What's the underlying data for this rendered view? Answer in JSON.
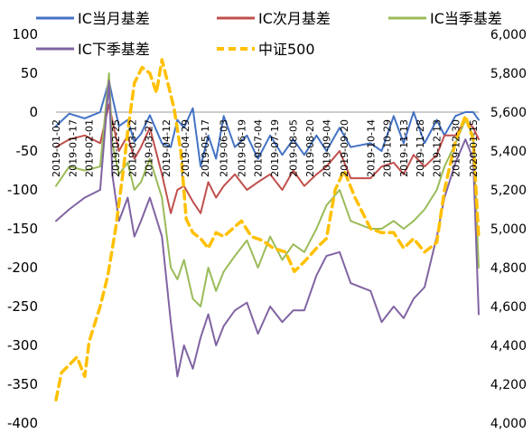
{
  "chart_data": {
    "type": "line",
    "title": "",
    "xlabel": "",
    "ylabel": "",
    "ylim": [
      -400,
      100
    ],
    "y2lim": [
      4000,
      6000
    ],
    "y_ticks": [
      "100",
      "50",
      "0",
      "-50",
      "-100",
      "-150",
      "-200",
      "-250",
      "-300",
      "-350",
      "-400"
    ],
    "y2_ticks": [
      "6,000",
      "5,800",
      "5,600",
      "5,400",
      "5,200",
      "5,000",
      "4,800",
      "4,600",
      "4,400",
      "4,200",
      "4,000"
    ],
    "x_tick_labels": [
      "2019-01-02",
      "2019-01-17",
      "2019-02-01",
      "2019-02-25",
      "2019-03-12",
      "2019-03-27",
      "2019-04-12",
      "2019-04-29",
      "2019-05-17",
      "2019-06-03",
      "2019-06-19",
      "2019-07-04",
      "2019-07-19",
      "2019-08-05",
      "2019-08-20",
      "2019-09-04",
      "2019-09-20",
      "2019-10-14",
      "2019-10-29",
      "2019-11-13",
      "2019-11-28",
      "2019-12-13",
      "2019-12-30",
      "2020-01-15"
    ],
    "x_range": [
      "2019-01-02",
      "2020-01-20"
    ],
    "grid": false,
    "legend_position": "top",
    "series": [
      {
        "name": "IC当月基差",
        "axis": "left",
        "color": "#4472C4",
        "dash": "solid",
        "x": [
          "2019-01-02",
          "2019-01-14",
          "2019-01-28",
          "2019-02-11",
          "2019-02-19",
          "2019-02-22",
          "2019-02-28",
          "2019-03-08",
          "2019-03-14",
          "2019-03-20",
          "2019-03-28",
          "2019-04-08",
          "2019-04-16",
          "2019-04-22",
          "2019-04-28",
          "2019-05-06",
          "2019-05-13",
          "2019-05-20",
          "2019-05-27",
          "2019-06-03",
          "2019-06-13",
          "2019-06-24",
          "2019-07-04",
          "2019-07-15",
          "2019-07-26",
          "2019-08-05",
          "2019-08-15",
          "2019-08-26",
          "2019-09-04",
          "2019-09-16",
          "2019-09-26",
          "2019-10-14",
          "2019-10-24",
          "2019-11-04",
          "2019-11-13",
          "2019-11-22",
          "2019-12-02",
          "2019-12-13",
          "2019-12-20",
          "2019-12-30",
          "2020-01-08",
          "2020-01-15",
          "2020-01-20"
        ],
        "values": [
          -18,
          -2,
          -8,
          0,
          40,
          20,
          -18,
          -10,
          -38,
          -28,
          -4,
          -40,
          -45,
          -10,
          -20,
          5,
          -70,
          -30,
          -60,
          -5,
          -45,
          -30,
          -60,
          -30,
          -55,
          -35,
          -55,
          -30,
          -50,
          -20,
          -45,
          -40,
          -50,
          -5,
          -40,
          0,
          -40,
          -10,
          -30,
          -5,
          0,
          0,
          -10
        ]
      },
      {
        "name": "IC次月基差",
        "axis": "left",
        "color": "#C0504D",
        "dash": "solid",
        "x": [
          "2019-01-02",
          "2019-01-14",
          "2019-01-28",
          "2019-02-11",
          "2019-02-19",
          "2019-02-22",
          "2019-02-28",
          "2019-03-08",
          "2019-03-14",
          "2019-03-20",
          "2019-03-28",
          "2019-04-08",
          "2019-04-16",
          "2019-04-22",
          "2019-04-28",
          "2019-05-06",
          "2019-05-13",
          "2019-05-20",
          "2019-05-27",
          "2019-06-03",
          "2019-06-13",
          "2019-06-24",
          "2019-07-04",
          "2019-07-15",
          "2019-07-26",
          "2019-08-05",
          "2019-08-15",
          "2019-08-26",
          "2019-09-04",
          "2019-09-16",
          "2019-09-26",
          "2019-10-14",
          "2019-10-24",
          "2019-11-04",
          "2019-11-13",
          "2019-11-22",
          "2019-12-02",
          "2019-12-13",
          "2019-12-20",
          "2019-12-30",
          "2020-01-08",
          "2020-01-15",
          "2020-01-20"
        ],
        "values": [
          -45,
          -35,
          -30,
          -40,
          10,
          -10,
          -50,
          -30,
          -60,
          -45,
          -20,
          -80,
          -130,
          -100,
          -95,
          -115,
          -130,
          -90,
          -110,
          -95,
          -80,
          -100,
          -90,
          -80,
          -100,
          -75,
          -95,
          -80,
          -70,
          -50,
          -85,
          -85,
          -70,
          -65,
          -80,
          -55,
          -70,
          -55,
          -30,
          -30,
          -10,
          -20,
          -35
        ]
      },
      {
        "name": "IC当季基差",
        "axis": "left",
        "color": "#9BBB59",
        "dash": "solid",
        "x": [
          "2019-01-02",
          "2019-01-14",
          "2019-01-28",
          "2019-02-11",
          "2019-02-19",
          "2019-02-22",
          "2019-02-28",
          "2019-03-08",
          "2019-03-14",
          "2019-03-20",
          "2019-03-28",
          "2019-04-08",
          "2019-04-16",
          "2019-04-22",
          "2019-04-28",
          "2019-05-06",
          "2019-05-13",
          "2019-05-20",
          "2019-05-27",
          "2019-06-03",
          "2019-06-13",
          "2019-06-24",
          "2019-07-04",
          "2019-07-15",
          "2019-07-26",
          "2019-08-05",
          "2019-08-15",
          "2019-08-26",
          "2019-09-04",
          "2019-09-16",
          "2019-09-26",
          "2019-10-14",
          "2019-10-24",
          "2019-11-04",
          "2019-11-13",
          "2019-11-22",
          "2019-12-02",
          "2019-12-13",
          "2019-12-20",
          "2019-12-30",
          "2020-01-08",
          "2020-01-15",
          "2020-01-20"
        ],
        "values": [
          -95,
          -70,
          -75,
          -70,
          50,
          -40,
          -80,
          -65,
          -100,
          -90,
          -60,
          -110,
          -200,
          -215,
          -190,
          -240,
          -250,
          -200,
          -230,
          -205,
          -185,
          -165,
          -200,
          -160,
          -190,
          -170,
          -180,
          -150,
          -120,
          -100,
          -140,
          -150,
          -150,
          -140,
          -150,
          -140,
          -125,
          -100,
          -70,
          -40,
          -10,
          -30,
          -200
        ]
      },
      {
        "name": "IC下季基差",
        "axis": "left",
        "color": "#8064A2",
        "dash": "solid",
        "x": [
          "2019-01-02",
          "2019-01-14",
          "2019-01-28",
          "2019-02-11",
          "2019-02-19",
          "2019-02-22",
          "2019-02-28",
          "2019-03-08",
          "2019-03-14",
          "2019-03-20",
          "2019-03-28",
          "2019-04-08",
          "2019-04-16",
          "2019-04-22",
          "2019-04-28",
          "2019-05-06",
          "2019-05-13",
          "2019-05-20",
          "2019-05-27",
          "2019-06-03",
          "2019-06-13",
          "2019-06-24",
          "2019-07-04",
          "2019-07-15",
          "2019-07-26",
          "2019-08-05",
          "2019-08-15",
          "2019-08-26",
          "2019-09-04",
          "2019-09-16",
          "2019-09-26",
          "2019-10-14",
          "2019-10-24",
          "2019-11-04",
          "2019-11-13",
          "2019-11-22",
          "2019-12-02",
          "2019-12-13",
          "2019-12-20",
          "2019-12-30",
          "2020-01-08",
          "2020-01-15",
          "2020-01-20"
        ],
        "values": [
          -140,
          -125,
          -110,
          -100,
          40,
          -80,
          -140,
          -110,
          -160,
          -140,
          -110,
          -160,
          -270,
          -340,
          -300,
          -330,
          -290,
          -260,
          -300,
          -275,
          -255,
          -245,
          -285,
          -250,
          -270,
          -255,
          -255,
          -210,
          -185,
          -180,
          -220,
          -230,
          -270,
          -250,
          -265,
          -240,
          -225,
          -160,
          -110,
          -65,
          -35,
          -60,
          -260
        ]
      },
      {
        "name": "中证500",
        "axis": "right",
        "color": "#FFC000",
        "dash": "dashed",
        "x": [
          "2019-01-02",
          "2019-01-07",
          "2019-01-14",
          "2019-01-21",
          "2019-01-28",
          "2019-02-01",
          "2019-02-11",
          "2019-02-18",
          "2019-02-25",
          "2019-03-04",
          "2019-03-08",
          "2019-03-14",
          "2019-03-21",
          "2019-03-28",
          "2019-04-03",
          "2019-04-08",
          "2019-04-12",
          "2019-04-19",
          "2019-04-25",
          "2019-04-30",
          "2019-05-06",
          "2019-05-13",
          "2019-05-20",
          "2019-05-27",
          "2019-06-03",
          "2019-06-11",
          "2019-06-19",
          "2019-06-28",
          "2019-07-08",
          "2019-07-18",
          "2019-07-29",
          "2019-08-06",
          "2019-08-15",
          "2019-08-26",
          "2019-09-04",
          "2019-09-12",
          "2019-09-20",
          "2019-09-30",
          "2019-10-14",
          "2019-10-24",
          "2019-11-04",
          "2019-11-13",
          "2019-11-22",
          "2019-12-02",
          "2019-12-13",
          "2019-12-20",
          "2019-12-30",
          "2020-01-08",
          "2020-01-15",
          "2020-01-20"
        ],
        "values": [
          4120,
          4260,
          4300,
          4340,
          4240,
          4420,
          4600,
          4760,
          5000,
          5300,
          5500,
          5750,
          5830,
          5800,
          5700,
          5870,
          5780,
          5620,
          5400,
          5050,
          4980,
          4950,
          4900,
          4980,
          4960,
          5000,
          5040,
          4960,
          4940,
          4900,
          4880,
          4780,
          4830,
          4900,
          4950,
          5200,
          5300,
          5160,
          5000,
          4980,
          4980,
          4900,
          4950,
          4880,
          4930,
          5200,
          5450,
          5580,
          5460,
          4950
        ]
      }
    ]
  }
}
